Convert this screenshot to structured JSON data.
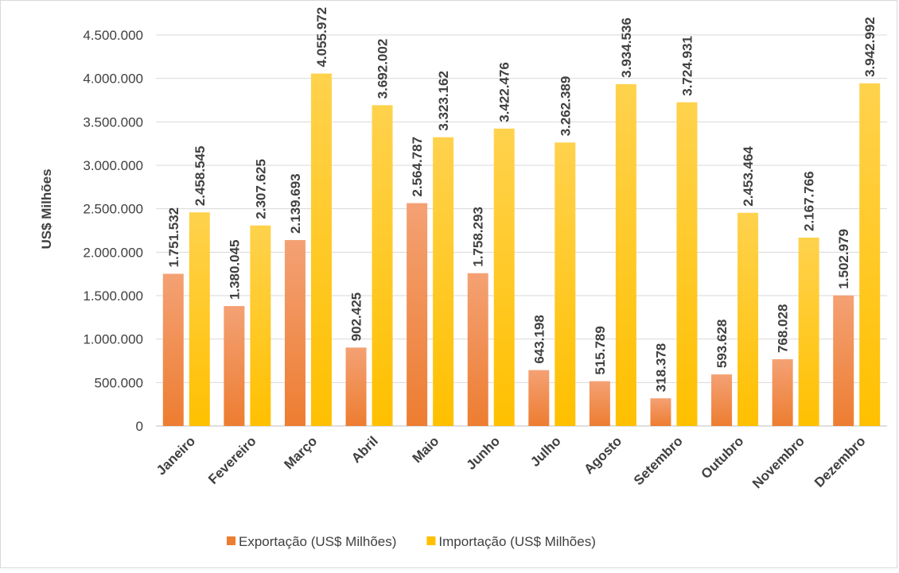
{
  "chart_data": {
    "type": "bar",
    "title": "",
    "xlabel": "",
    "ylabel": "US$ Milhões",
    "ylim": [
      0,
      4500000
    ],
    "yticks": [
      0,
      500000,
      1000000,
      1500000,
      2000000,
      2500000,
      3000000,
      3500000,
      4000000,
      4500000
    ],
    "ytick_labels": [
      "0",
      "500.000",
      "1.000.000",
      "1.500.000",
      "2.000.000",
      "2.500.000",
      "3.000.000",
      "3.500.000",
      "4.000.000",
      "4.500.000"
    ],
    "grid": true,
    "legend_position": "bottom",
    "categories": [
      "Janeiro",
      "Fevereiro",
      "Março",
      "Abril",
      "Maio",
      "Junho",
      "Julho",
      "Agosto",
      "Setembro",
      "Outubro",
      "Novembro",
      "Dezembro"
    ],
    "series": [
      {
        "name": "Exportação (US$ Milhões)",
        "color": "#ed7d31",
        "color_light": "#f4a174",
        "values": [
          1751532,
          1380045,
          2139693,
          902425,
          2564787,
          1758293,
          643198,
          515789,
          318378,
          593628,
          768028,
          1502979
        ],
        "labels": [
          "1.751.532",
          "1.380.045",
          "2.139.693",
          "902.425",
          "2.564.787",
          "1.758.293",
          "643.198",
          "515.789",
          "318.378",
          "593.628",
          "768.028",
          "1.502.979"
        ]
      },
      {
        "name": "Importação (US$ Milhões)",
        "color": "#ffc000",
        "color_light": "#ffd24d",
        "values": [
          2458545,
          2307625,
          4055972,
          3692002,
          3323162,
          3422476,
          3262389,
          3934536,
          3724931,
          2453464,
          2167766,
          3942992
        ],
        "labels": [
          "2.458.545",
          "2.307.625",
          "4.055.972",
          "3.692.002",
          "3.323.162",
          "3.422.476",
          "3.262.389",
          "3.934.536",
          "3.724.931",
          "2.453.464",
          "2.167.766",
          "3.942.992"
        ]
      }
    ]
  }
}
